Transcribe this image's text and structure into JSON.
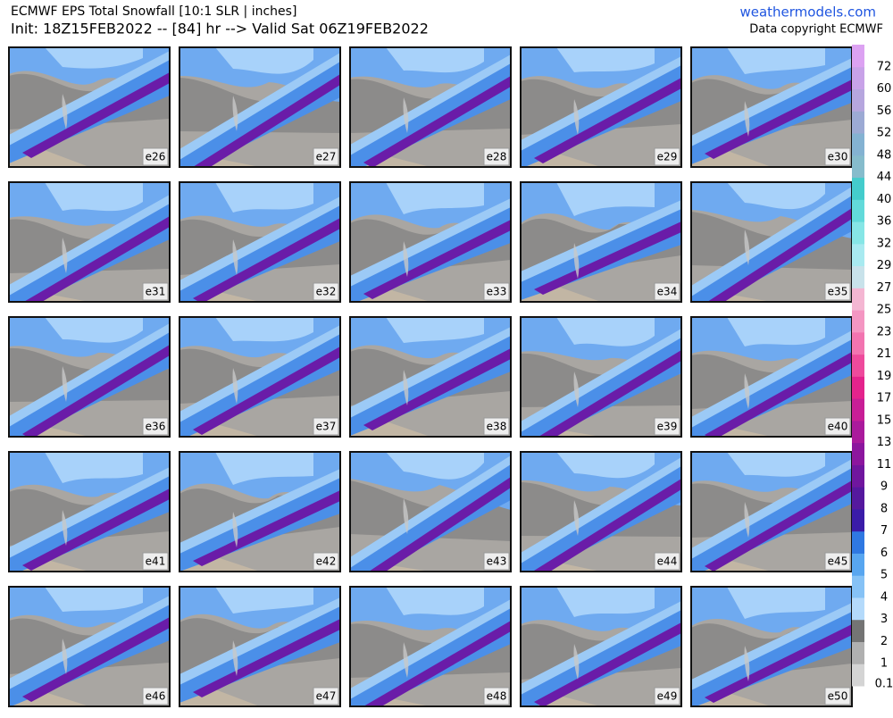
{
  "header": {
    "title": "ECMWF EPS Total Snowfall [10:1 SLR | inches]",
    "subtitle": "Init: 18Z15FEB2022 -- [84] hr --> Valid Sat 06Z19FEB2022",
    "site": "weathermodels.com",
    "copyright": "Data copyright ECMWF"
  },
  "panels": [
    "e26",
    "e27",
    "e28",
    "e29",
    "e30",
    "e31",
    "e32",
    "e33",
    "e34",
    "e35",
    "e36",
    "e37",
    "e38",
    "e39",
    "e40",
    "e41",
    "e42",
    "e43",
    "e44",
    "e45",
    "e46",
    "e47",
    "e48",
    "e49",
    "e50"
  ],
  "colorbar": {
    "levels": [
      0.1,
      1,
      2,
      3,
      4,
      5,
      6,
      7,
      8,
      9,
      11,
      13,
      15,
      17,
      19,
      21,
      23,
      25,
      27,
      29,
      32,
      36,
      40,
      44,
      48,
      52,
      56,
      60,
      72
    ],
    "colors": [
      "#d4d4d4",
      "#b0b0b0",
      "#747474",
      "#b4dafb",
      "#86c2f6",
      "#58a6f0",
      "#2f78e2",
      "#3a1ca8",
      "#55189e",
      "#70169e",
      "#8c169e",
      "#aa1a9c",
      "#c81e96",
      "#e4238c",
      "#ee4a9c",
      "#f274b0",
      "#f496c2",
      "#f4b6d2",
      "#c8e2ea",
      "#a8eaf0",
      "#86e6e6",
      "#62dada",
      "#44cccc",
      "#86bccc",
      "#84b2d2",
      "#9caad4",
      "#b6a6de",
      "#c8a2e8",
      "#dca2f2"
    ]
  }
}
